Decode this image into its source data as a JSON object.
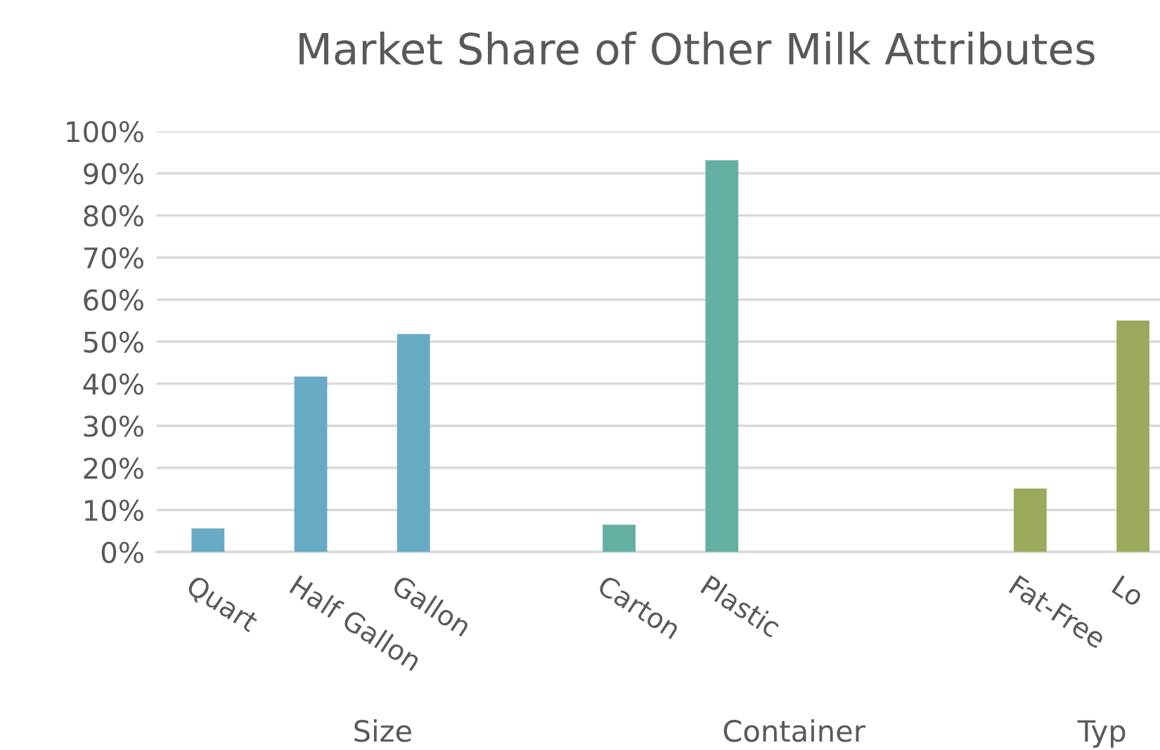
{
  "chart_data": {
    "type": "bar",
    "title": "Market Share of Other Milk Attributes",
    "categories": [
      "Quart",
      "Half Gallon",
      "Gallon",
      null,
      "Carton",
      "Plastic",
      null,
      null,
      "Fat-Free",
      "Lo"
    ],
    "values": [
      5.6,
      41.7,
      51.8,
      null,
      6.5,
      93.1,
      null,
      null,
      15.1,
      55.0
    ],
    "colors": [
      "#67aac4",
      "#67aac4",
      "#67aac4",
      null,
      "#63b0a2",
      "#63b0a2",
      null,
      null,
      "#9aaa5c",
      "#9aaa5c"
    ],
    "ylim": [
      0,
      100
    ],
    "yticks": [
      {
        "value": 0,
        "label": "0%"
      },
      {
        "value": 10,
        "label": "10%"
      },
      {
        "value": 20,
        "label": "20%"
      },
      {
        "value": 30,
        "label": "30%"
      },
      {
        "value": 40,
        "label": "40%"
      },
      {
        "value": 50,
        "label": "50%"
      },
      {
        "value": 60,
        "label": "60%"
      },
      {
        "value": 70,
        "label": "70%"
      },
      {
        "value": 80,
        "label": "80%"
      },
      {
        "value": 90,
        "label": "90%"
      },
      {
        "value": 100,
        "label": "100%"
      }
    ],
    "grid": "y",
    "annotations": [
      "Size",
      "Container",
      "Typ"
    ]
  }
}
